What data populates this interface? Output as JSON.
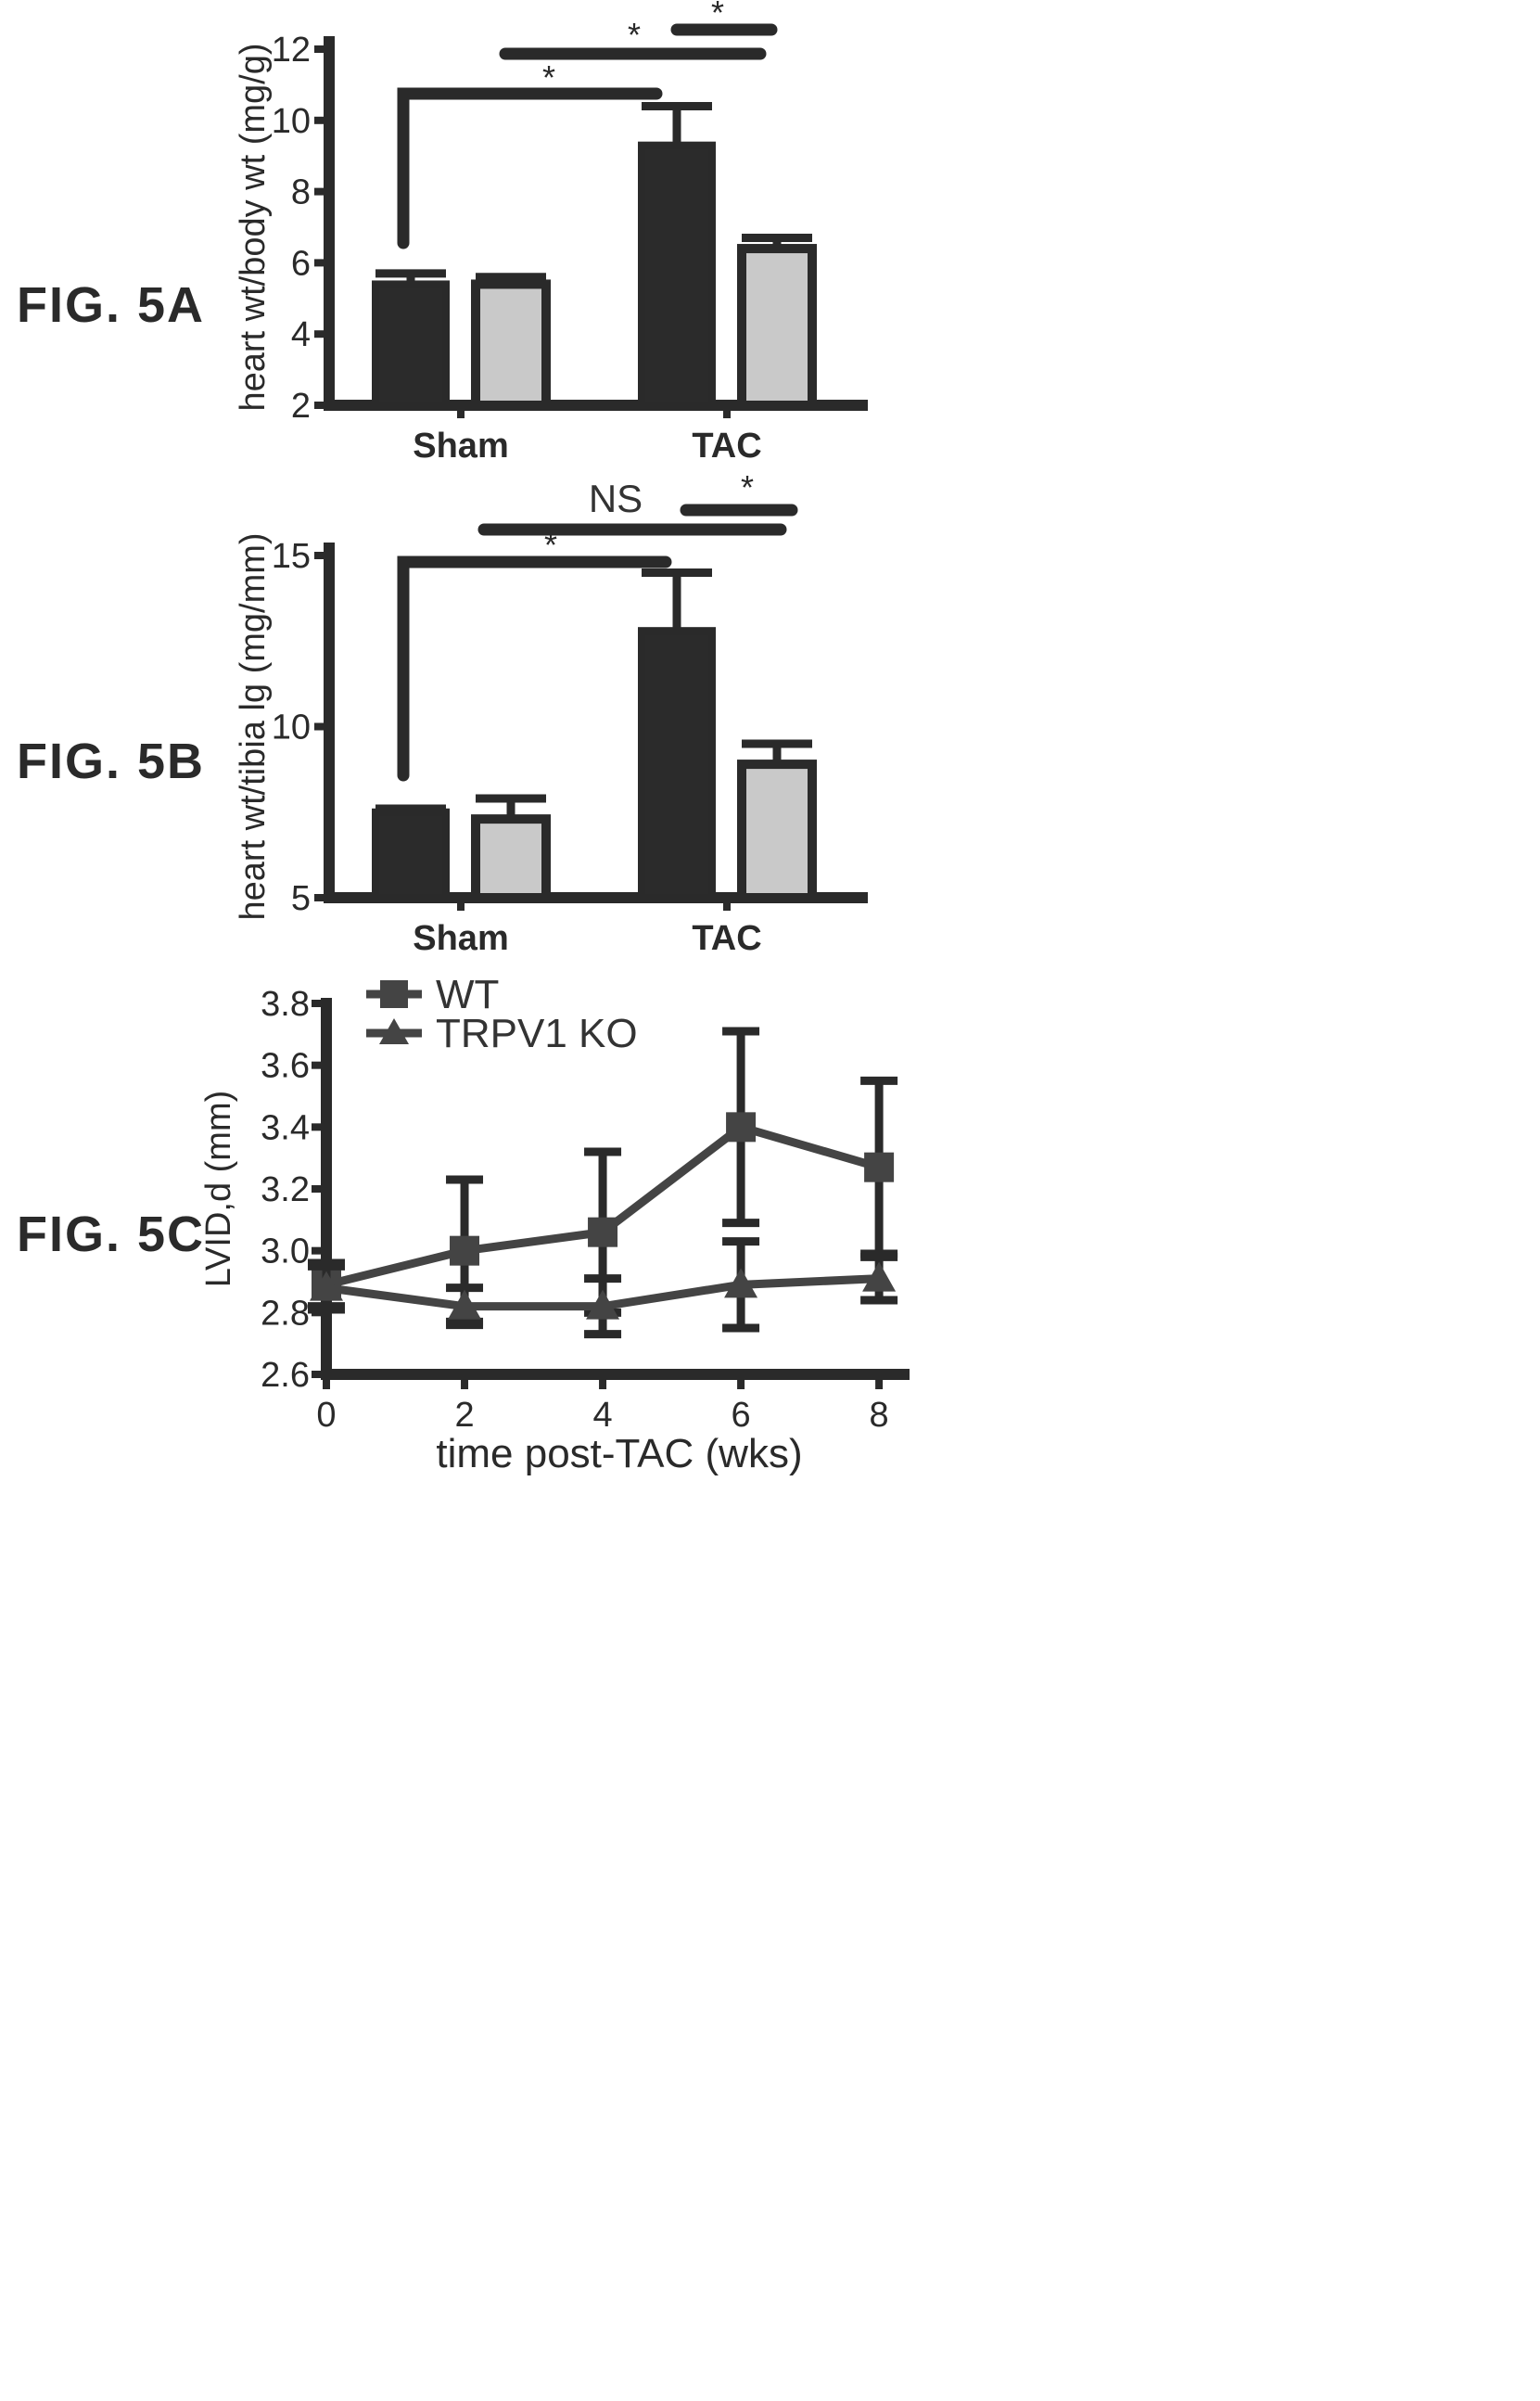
{
  "figure_labels": [
    "FIG. 5A",
    "FIG. 5B",
    "FIG. 5C"
  ],
  "colors": {
    "wt_bar": "#2b2b2b",
    "ko_bar": "#c9c9c9",
    "ink": "#2a2a2a"
  },
  "chart_data": [
    {
      "type": "bar",
      "title": "",
      "ylabel": "heart wt/body wt (mg/g)",
      "xlabel": "",
      "categories": [
        "Sham",
        "TAC"
      ],
      "ylim": [
        2,
        12
      ],
      "yticks": [
        2,
        4,
        6,
        8,
        10,
        12
      ],
      "series": [
        {
          "values": [
            5.4,
            9.3
          ],
          "errors": [
            0.3,
            1.1
          ]
        },
        {
          "values": [
            5.4,
            6.4
          ],
          "errors": [
            0.2,
            0.3
          ]
        }
      ],
      "annotations": [
        {
          "text": "*",
          "from": "Sham-WT",
          "to": "TAC-WT"
        },
        {
          "text": "*",
          "from": "Sham-KO",
          "to": "TAC-KO"
        },
        {
          "text": "*",
          "from": "TAC-WT",
          "to": "TAC-KO"
        }
      ],
      "legend": "none"
    },
    {
      "type": "bar",
      "title": "",
      "ylabel": "heart wt/tibia lg (mg/mm)",
      "xlabel": "",
      "categories": [
        "Sham",
        "TAC"
      ],
      "ylim": [
        5,
        15
      ],
      "yticks": [
        5,
        10,
        15
      ],
      "series": [
        {
          "values": [
            7.5,
            12.8
          ],
          "errors": [
            0.1,
            1.7
          ]
        },
        {
          "values": [
            7.3,
            8.9
          ],
          "errors": [
            0.6,
            0.6
          ]
        }
      ],
      "annotations": [
        {
          "text": "*",
          "from": "Sham-WT",
          "to": "TAC-WT"
        },
        {
          "text": "NS",
          "from": "Sham-KO",
          "to": "TAC-KO"
        },
        {
          "text": "*",
          "from": "TAC-WT",
          "to": "TAC-KO"
        }
      ],
      "legend": "none"
    },
    {
      "type": "line",
      "title": "",
      "xlabel": "time post-TAC (wks)",
      "ylabel": "LVID,d (mm)",
      "x": [
        0,
        2,
        4,
        6,
        8
      ],
      "xticks": [
        0,
        2,
        4,
        6,
        8
      ],
      "xlim": [
        0,
        8.2
      ],
      "ylim": [
        2.6,
        3.8
      ],
      "yticks": [
        2.6,
        2.8,
        3.0,
        3.2,
        3.4,
        3.6,
        3.8
      ],
      "series": [
        {
          "name": "WT",
          "marker": "square",
          "values": [
            2.89,
            3.0,
            3.06,
            3.4,
            3.27
          ],
          "errors": [
            0.07,
            0.23,
            0.26,
            0.31,
            0.28
          ]
        },
        {
          "name": "TRPV1 KO",
          "marker": "triangle",
          "values": [
            2.88,
            2.82,
            2.82,
            2.89,
            2.91
          ],
          "errors": [
            0.07,
            0.06,
            0.09,
            0.14,
            0.07
          ]
        }
      ],
      "legend": "top-left",
      "grid": false
    }
  ]
}
